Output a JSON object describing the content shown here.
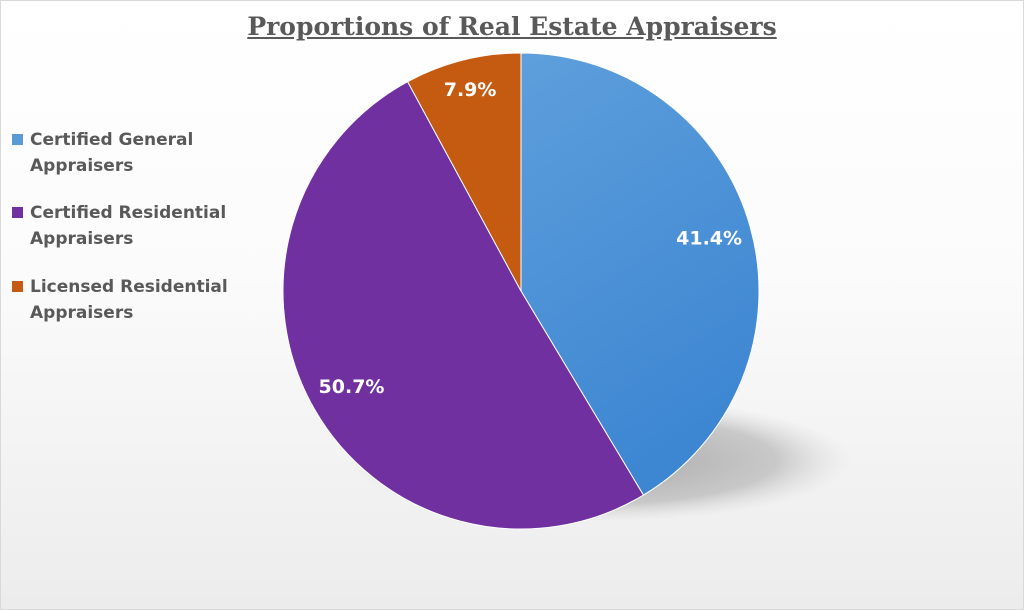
{
  "chart_data": {
    "type": "pie",
    "title": "Proportions of Real Estate Appraisers",
    "categories": [
      "Certified General Appraisers",
      "Certified Residential Appraisers",
      "Licensed Residential Appraisers"
    ],
    "values": [
      41.4,
      50.7,
      7.9
    ],
    "value_labels": [
      "41.4%",
      "50.7%",
      "7.9%"
    ],
    "colors": [
      "#4a90d9",
      "#7030a0",
      "#c55a11"
    ],
    "legend_position": "left",
    "start_angle": "12 o'clock",
    "direction": "clockwise"
  }
}
